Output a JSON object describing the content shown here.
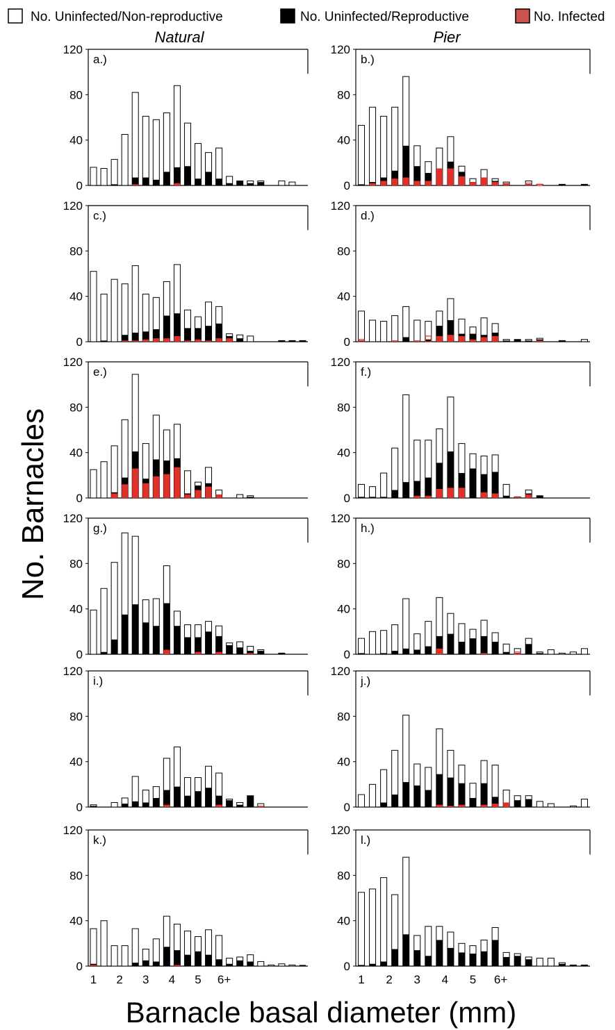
{
  "legend": [
    {
      "label": "No. Uninfected/Non-reproductive",
      "color": "#ffffff",
      "icon": "white-square-icon"
    },
    {
      "label": "No. Uninfected/Reproductive",
      "color": "#000000",
      "icon": "black-square-icon"
    },
    {
      "label": "No. Infected",
      "color": "#c9534f",
      "icon": "red-square-icon"
    }
  ],
  "columns": [
    "Natural",
    "Pier"
  ],
  "chart_data": {
    "type": "bar",
    "stacked": true,
    "ylabel": "No. Barnacles",
    "xlabel": "Barnacle basal diameter (mm)",
    "ylim": [
      0,
      120
    ],
    "yticks": [
      0,
      40,
      80,
      120
    ],
    "xticks": [
      "1",
      "2",
      "3",
      "4",
      "5",
      "6+"
    ],
    "n_bins": 21,
    "colors": {
      "non_reproductive": "#ffffff",
      "reproductive": "#000000",
      "infected": "#e0302a"
    },
    "panels": [
      {
        "label": "a.)",
        "column": "Natural",
        "totals": [
          16,
          15,
          23,
          45,
          82,
          61,
          58,
          64,
          88,
          55,
          37,
          29,
          33,
          8,
          4,
          4,
          4,
          0,
          4,
          3,
          0
        ],
        "reproductive": [
          0,
          0,
          1,
          0,
          7,
          7,
          5,
          12,
          16,
          17,
          6,
          12,
          6,
          2,
          4,
          2,
          3,
          0,
          0,
          0,
          0
        ],
        "infected": [
          0,
          0,
          0,
          0,
          1,
          0,
          0,
          0,
          2,
          0,
          0,
          0,
          0,
          0,
          0,
          0,
          0,
          0,
          0,
          0,
          0
        ]
      },
      {
        "label": "b.)",
        "column": "Pier",
        "totals": [
          53,
          69,
          61,
          69,
          96,
          35,
          21,
          33,
          43,
          17,
          6,
          14,
          6,
          3,
          0,
          4,
          1,
          0,
          1,
          0,
          1
        ],
        "reproductive": [
          1,
          3,
          7,
          13,
          35,
          17,
          11,
          15,
          21,
          12,
          3,
          7,
          4,
          2,
          0,
          1,
          0,
          0,
          1,
          0,
          1
        ],
        "infected": [
          0,
          2,
          4,
          6,
          7,
          4,
          4,
          15,
          15,
          8,
          3,
          7,
          3,
          2,
          0,
          2,
          1,
          0,
          0,
          0,
          0
        ]
      },
      {
        "label": "c.)",
        "column": "Natural",
        "totals": [
          62,
          42,
          55,
          51,
          67,
          42,
          39,
          53,
          68,
          28,
          22,
          35,
          31,
          7,
          6,
          5,
          0,
          0,
          1,
          1,
          1
        ],
        "reproductive": [
          0,
          1,
          0,
          6,
          8,
          9,
          11,
          23,
          25,
          12,
          12,
          14,
          16,
          5,
          3,
          0,
          0,
          0,
          1,
          1,
          1
        ],
        "infected": [
          0,
          0,
          0,
          1,
          1,
          2,
          3,
          3,
          5,
          1,
          2,
          1,
          3,
          3,
          0,
          0,
          0,
          0,
          0,
          0,
          0
        ]
      },
      {
        "label": "d.)",
        "column": "Pier",
        "totals": [
          27,
          19,
          18,
          23,
          31,
          19,
          18,
          27,
          38,
          20,
          13,
          21,
          16,
          2,
          2,
          2,
          3,
          0,
          1,
          0,
          2
        ],
        "reproductive": [
          1,
          0,
          0,
          1,
          4,
          1,
          2,
          14,
          19,
          7,
          7,
          6,
          8,
          1,
          2,
          1,
          2,
          0,
          1,
          0,
          0
        ],
        "infected": [
          2,
          0,
          0,
          1,
          0,
          1,
          5,
          5,
          6,
          5,
          2,
          4,
          5,
          0,
          0,
          0,
          1,
          0,
          0,
          0,
          0
        ]
      },
      {
        "label": "e.)",
        "column": "Natural",
        "totals": [
          25,
          32,
          46,
          69,
          109,
          48,
          73,
          60,
          65,
          24,
          14,
          27,
          7,
          0,
          3,
          2,
          0,
          0,
          0,
          0,
          0
        ],
        "reproductive": [
          0,
          0,
          5,
          18,
          41,
          17,
          34,
          33,
          35,
          4,
          11,
          13,
          3,
          0,
          0,
          1,
          0,
          0,
          0,
          0,
          0
        ],
        "infected": [
          0,
          0,
          4,
          12,
          26,
          13,
          19,
          21,
          27,
          3,
          7,
          10,
          3,
          0,
          0,
          0,
          0,
          0,
          0,
          0,
          0
        ]
      },
      {
        "label": "f.)",
        "column": "Pier",
        "totals": [
          12,
          10,
          22,
          44,
          91,
          51,
          51,
          61,
          89,
          48,
          39,
          37,
          38,
          12,
          1,
          7,
          2,
          0,
          0,
          0,
          0
        ],
        "reproductive": [
          1,
          1,
          1,
          7,
          14,
          15,
          18,
          31,
          41,
          22,
          26,
          21,
          23,
          2,
          1,
          4,
          2,
          0,
          0,
          0,
          0
        ],
        "infected": [
          0,
          0,
          0,
          0,
          0,
          2,
          2,
          8,
          9,
          9,
          0,
          5,
          4,
          0,
          1,
          3,
          0,
          0,
          0,
          0,
          0
        ]
      },
      {
        "label": "g.)",
        "column": "Natural",
        "totals": [
          39,
          58,
          81,
          107,
          104,
          48,
          49,
          78,
          38,
          26,
          26,
          29,
          25,
          10,
          11,
          7,
          4,
          0,
          1,
          0,
          0
        ],
        "reproductive": [
          0,
          2,
          13,
          35,
          44,
          28,
          25,
          45,
          25,
          15,
          15,
          20,
          16,
          8,
          6,
          3,
          3,
          0,
          1,
          0,
          0
        ],
        "infected": [
          0,
          0,
          0,
          0,
          0,
          0,
          0,
          4,
          0,
          0,
          2,
          0,
          2,
          0,
          0,
          1,
          0,
          0,
          0,
          0,
          0
        ]
      },
      {
        "label": "h.)",
        "column": "Pier",
        "totals": [
          14,
          20,
          21,
          26,
          49,
          18,
          29,
          50,
          36,
          27,
          22,
          30,
          19,
          9,
          5,
          14,
          2,
          4,
          1,
          2,
          5
        ],
        "reproductive": [
          1,
          0,
          1,
          3,
          5,
          4,
          7,
          16,
          18,
          11,
          14,
          16,
          11,
          2,
          1,
          9,
          1,
          0,
          0,
          0,
          0
        ],
        "infected": [
          0,
          0,
          0,
          0,
          0,
          0,
          0,
          5,
          0,
          0,
          0,
          1,
          0,
          0,
          2,
          0,
          0,
          0,
          0,
          0,
          0
        ]
      },
      {
        "label": "i.)",
        "column": "Natural",
        "totals": [
          2,
          0,
          4,
          8,
          27,
          15,
          18,
          43,
          53,
          26,
          26,
          36,
          30,
          7,
          4,
          10,
          3,
          0,
          0,
          0,
          0
        ],
        "reproductive": [
          1,
          0,
          0,
          3,
          5,
          4,
          8,
          15,
          18,
          10,
          14,
          17,
          10,
          6,
          2,
          10,
          1,
          0,
          0,
          0,
          0
        ],
        "infected": [
          0,
          0,
          0,
          0,
          0,
          0,
          0,
          2,
          0,
          0,
          0,
          0,
          2,
          0,
          0,
          0,
          1,
          0,
          0,
          0,
          0
        ]
      },
      {
        "label": "j.)",
        "column": "Pier",
        "totals": [
          11,
          20,
          33,
          50,
          81,
          38,
          35,
          69,
          50,
          37,
          21,
          41,
          37,
          15,
          10,
          10,
          5,
          3,
          0,
          1,
          7
        ],
        "reproductive": [
          0,
          0,
          4,
          11,
          22,
          19,
          15,
          29,
          26,
          21,
          8,
          21,
          9,
          4,
          6,
          7,
          0,
          0,
          0,
          0,
          0
        ],
        "infected": [
          0,
          0,
          0,
          0,
          0,
          0,
          0,
          2,
          1,
          2,
          0,
          2,
          3,
          4,
          0,
          0,
          0,
          0,
          0,
          0,
          0
        ]
      },
      {
        "label": "k.)",
        "column": "Natural",
        "totals": [
          33,
          40,
          18,
          18,
          33,
          15,
          24,
          44,
          37,
          31,
          26,
          32,
          27,
          7,
          8,
          10,
          4,
          1,
          2,
          1,
          0
        ],
        "reproductive": [
          2,
          0,
          0,
          0,
          3,
          5,
          4,
          17,
          14,
          10,
          13,
          10,
          6,
          2,
          5,
          4,
          0,
          0,
          0,
          0,
          1
        ],
        "infected": [
          1,
          0,
          0,
          0,
          0,
          0,
          0,
          0,
          1,
          0,
          0,
          0,
          0,
          0,
          0,
          0,
          0,
          0,
          0,
          0,
          0
        ]
      },
      {
        "label": "l.)",
        "column": "Pier",
        "totals": [
          65,
          68,
          78,
          63,
          96,
          27,
          35,
          35,
          30,
          20,
          18,
          23,
          34,
          12,
          11,
          8,
          7,
          7,
          3,
          1,
          1
        ],
        "reproductive": [
          1,
          2,
          4,
          15,
          28,
          14,
          9,
          23,
          16,
          12,
          11,
          13,
          23,
          8,
          9,
          6,
          0,
          0,
          2,
          1,
          1
        ],
        "infected": [
          0,
          0,
          0,
          0,
          0,
          0,
          0,
          0,
          0,
          0,
          0,
          0,
          0,
          0,
          0,
          0,
          0,
          0,
          0,
          0,
          0
        ]
      }
    ]
  }
}
